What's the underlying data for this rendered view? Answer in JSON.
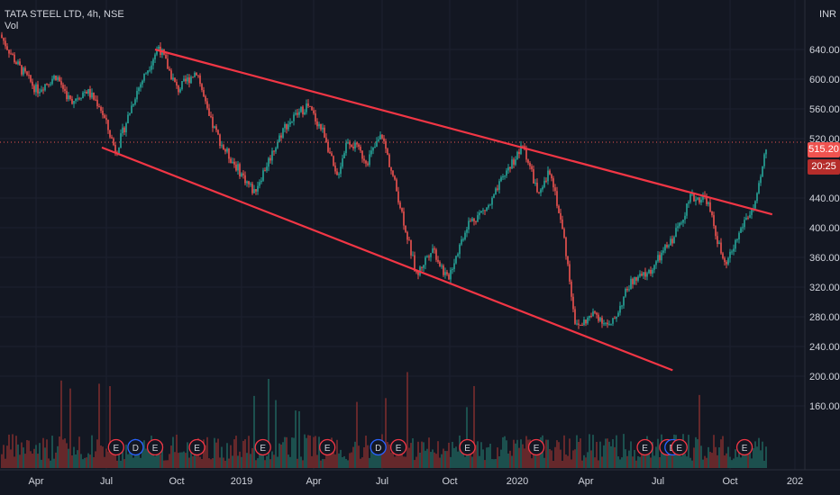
{
  "header": {
    "symbol_line": "TATA STEEL LTD, 4h, NSE",
    "volume_label": "Vol",
    "currency": "INR"
  },
  "price_tags": {
    "last_price": "515.20",
    "countdown": "20:25"
  },
  "colors": {
    "background": "#131722",
    "up": "#26a69a",
    "down": "#ef5350",
    "trendline": "#f23645",
    "axis_text": "#d1d4dc"
  },
  "chart_data": {
    "type": "candlestick",
    "yaxis_ticks": [
      "640.00",
      "600.00",
      "560.00",
      "520.00",
      "480.00",
      "440.00",
      "400.00",
      "360.00",
      "320.00",
      "280.00",
      "240.00",
      "200.00",
      "160.00"
    ],
    "ylim": [
      140,
      680
    ],
    "xaxis_ticks": [
      "Apr",
      "Jul",
      "Oct",
      "2019",
      "Apr",
      "Jul",
      "Oct",
      "2020",
      "Apr",
      "Jul",
      "Oct",
      "202"
    ],
    "price_path": [
      {
        "date": "2018-02-15",
        "close": 660
      },
      {
        "date": "2018-03-10",
        "close": 620
      },
      {
        "date": "2018-04-05",
        "close": 585
      },
      {
        "date": "2018-05-01",
        "close": 605
      },
      {
        "date": "2018-05-20",
        "close": 570
      },
      {
        "date": "2018-06-10",
        "close": 585
      },
      {
        "date": "2018-06-28",
        "close": 565
      },
      {
        "date": "2018-07-20",
        "close": 502
      },
      {
        "date": "2018-08-15",
        "close": 580
      },
      {
        "date": "2018-09-15",
        "close": 645
      },
      {
        "date": "2018-10-10",
        "close": 585
      },
      {
        "date": "2018-11-05",
        "close": 612
      },
      {
        "date": "2018-11-20",
        "close": 550
      },
      {
        "date": "2018-12-10",
        "close": 508
      },
      {
        "date": "2019-01-20",
        "close": 448
      },
      {
        "date": "2019-03-01",
        "close": 535
      },
      {
        "date": "2019-04-01",
        "close": 565
      },
      {
        "date": "2019-04-25",
        "close": 525
      },
      {
        "date": "2019-05-10",
        "close": 465
      },
      {
        "date": "2019-05-25",
        "close": 520
      },
      {
        "date": "2019-06-20",
        "close": 490
      },
      {
        "date": "2019-07-10",
        "close": 525
      },
      {
        "date": "2019-08-01",
        "close": 440
      },
      {
        "date": "2019-08-25",
        "close": 335
      },
      {
        "date": "2019-09-15",
        "close": 375
      },
      {
        "date": "2019-10-05",
        "close": 330
      },
      {
        "date": "2019-11-01",
        "close": 405
      },
      {
        "date": "2019-12-01",
        "close": 430
      },
      {
        "date": "2019-12-25",
        "close": 480
      },
      {
        "date": "2020-01-15",
        "close": 510
      },
      {
        "date": "2020-02-05",
        "close": 440
      },
      {
        "date": "2020-02-20",
        "close": 480
      },
      {
        "date": "2020-03-10",
        "close": 380
      },
      {
        "date": "2020-03-25",
        "close": 265
      },
      {
        "date": "2020-04-20",
        "close": 285
      },
      {
        "date": "2020-05-10",
        "close": 265
      },
      {
        "date": "2020-06-05",
        "close": 325
      },
      {
        "date": "2020-07-01",
        "close": 340
      },
      {
        "date": "2020-08-01",
        "close": 385
      },
      {
        "date": "2020-08-25",
        "close": 440
      },
      {
        "date": "2020-09-15",
        "close": 440
      },
      {
        "date": "2020-10-10",
        "close": 345
      },
      {
        "date": "2020-11-05",
        "close": 410
      },
      {
        "date": "2020-11-20",
        "close": 430
      },
      {
        "date": "2020-12-05",
        "close": 515
      }
    ],
    "trendlines": [
      {
        "name": "upper",
        "from": {
          "date": "2018-09-10",
          "price": 640
        },
        "to": {
          "date": "2020-12-12",
          "price": 418
        }
      },
      {
        "name": "lower",
        "from": {
          "date": "2018-07-01",
          "price": 508
        },
        "to": {
          "date": "2020-08-01",
          "price": 208
        }
      }
    ],
    "event_markers": [
      {
        "date": "2018-07-20",
        "label": "E"
      },
      {
        "date": "2018-08-15",
        "label": "D"
      },
      {
        "date": "2018-09-10",
        "label": "E"
      },
      {
        "date": "2018-11-05",
        "label": "E"
      },
      {
        "date": "2019-02-01",
        "label": "E"
      },
      {
        "date": "2019-04-28",
        "label": "E"
      },
      {
        "date": "2019-07-05",
        "label": "D"
      },
      {
        "date": "2019-08-01",
        "label": "E"
      },
      {
        "date": "2019-11-01",
        "label": "E"
      },
      {
        "date": "2020-02-01",
        "label": "E"
      },
      {
        "date": "2020-06-25",
        "label": "E"
      },
      {
        "date": "2020-07-25",
        "label": "E"
      },
      {
        "date": "2020-08-01",
        "label": "D"
      },
      {
        "date": "2020-08-10",
        "label": "E"
      },
      {
        "date": "2020-11-05",
        "label": "E"
      }
    ]
  }
}
